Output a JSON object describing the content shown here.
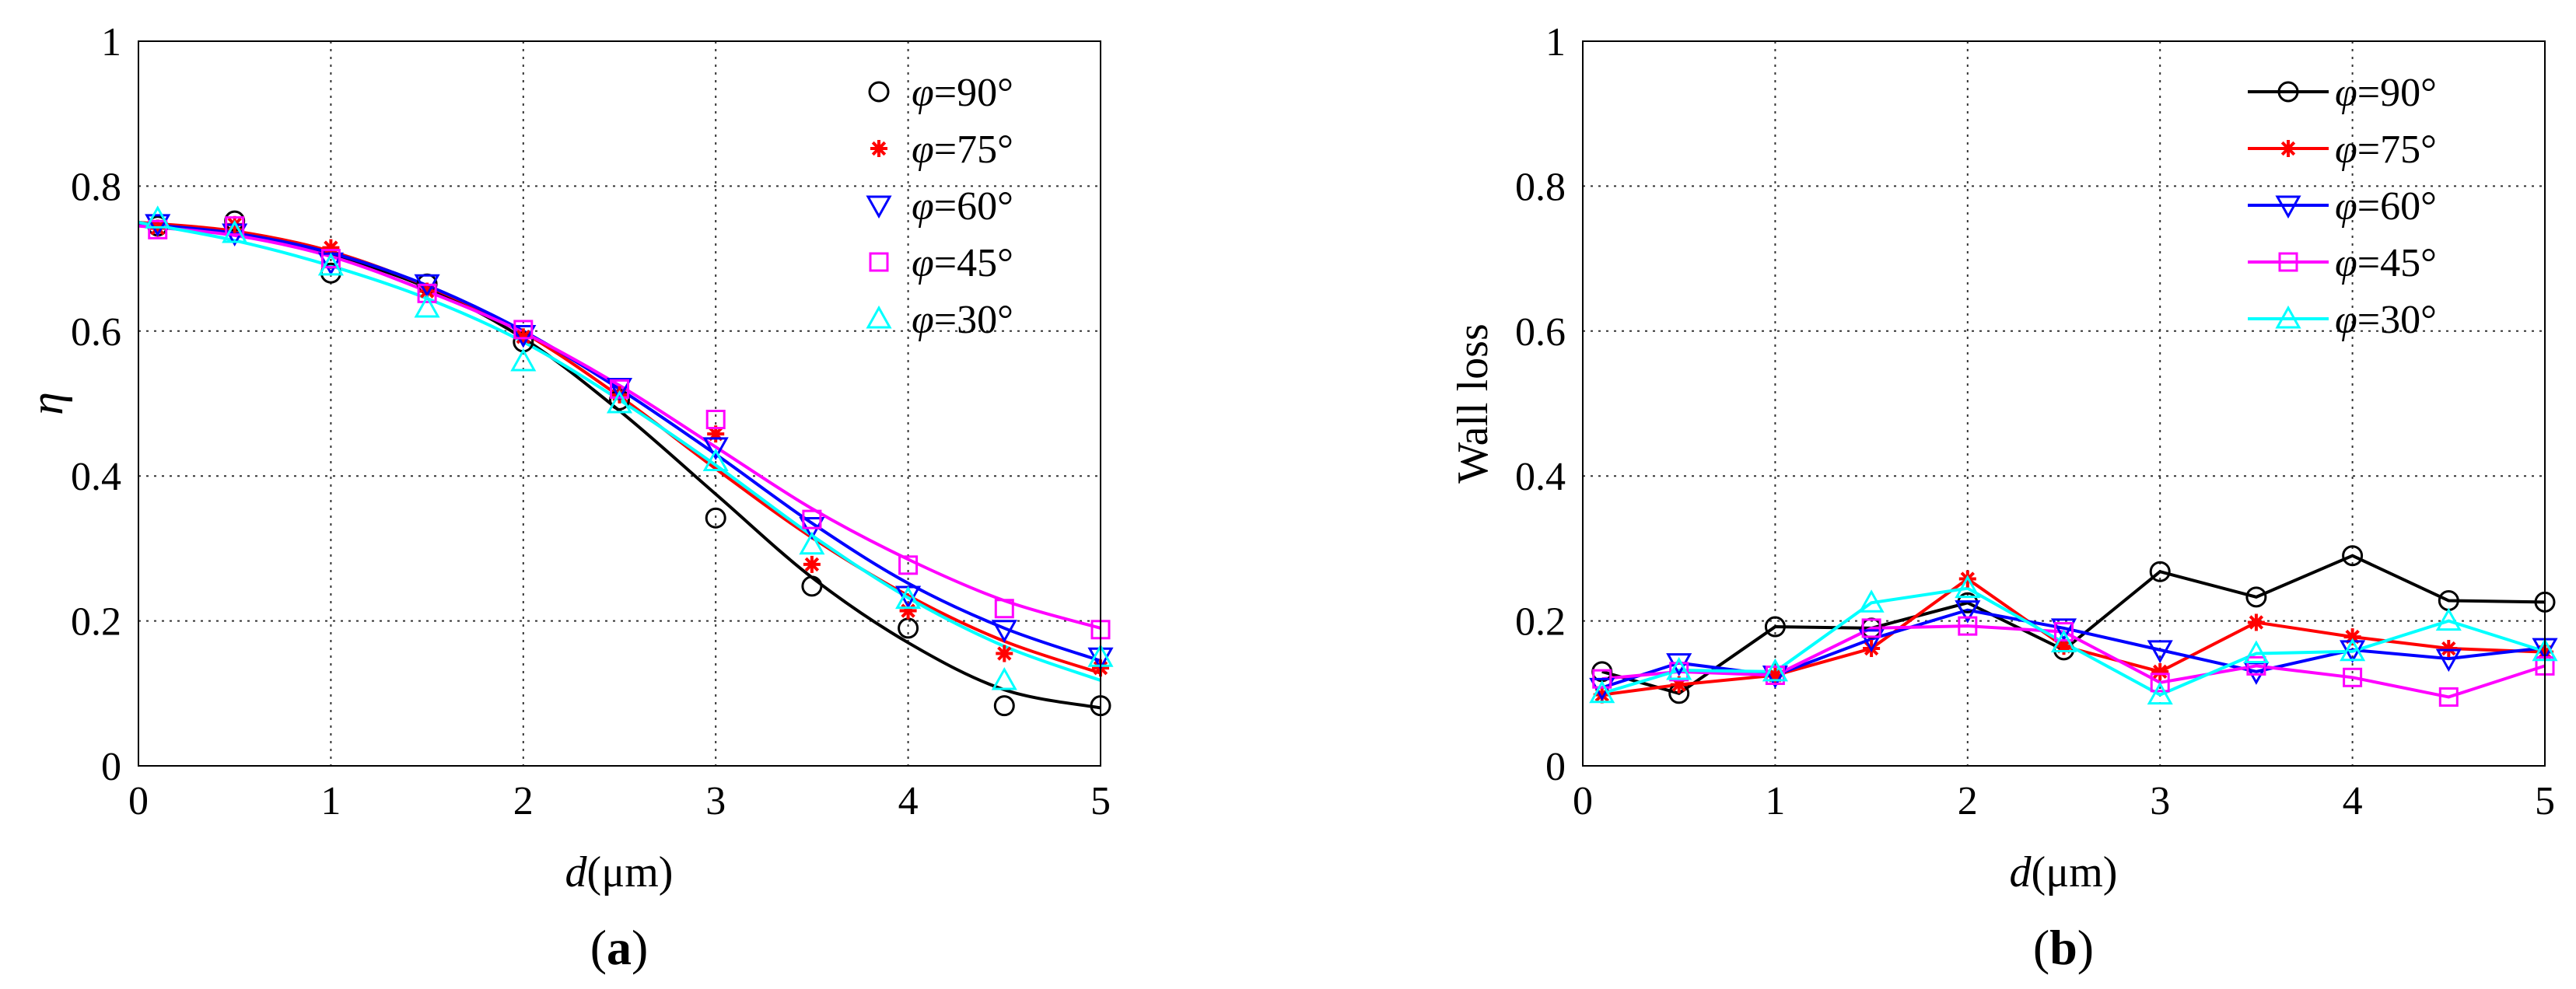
{
  "chart_data": [
    {
      "panel": "a",
      "caption": "(a)",
      "type": "scatter",
      "xlabel_italic": "d",
      "xlabel_unit": "(μm)",
      "ylabel": "η",
      "xlim": [
        0,
        5
      ],
      "ylim": [
        0,
        1
      ],
      "xticks": [
        0,
        1,
        2,
        3,
        4,
        5
      ],
      "yticks": [
        0,
        0.2,
        0.4,
        0.6,
        0.8,
        1
      ],
      "ytick_labels": [
        "0",
        "0.2",
        "0.4",
        "0.6",
        "0.8",
        "1"
      ],
      "grid": true,
      "legend_position": "top-right",
      "series": [
        {
          "label_symbol": "φ",
          "label_value": "=90°",
          "color": "#000000",
          "marker": "circle",
          "x": [
            0.1,
            0.5,
            1.0,
            1.5,
            2.0,
            2.5,
            3.0,
            3.5,
            4.0,
            4.5,
            5.0
          ],
          "y": [
            0.745,
            0.752,
            0.68,
            0.665,
            0.585,
            0.505,
            0.342,
            0.248,
            0.19,
            0.083,
            0.083
          ],
          "fit_x": [
            0,
            0.5,
            1,
            1.5,
            2,
            2.5,
            3,
            3.5,
            4,
            4.5,
            5
          ],
          "fit_y": [
            0.75,
            0.735,
            0.705,
            0.66,
            0.59,
            0.49,
            0.375,
            0.26,
            0.17,
            0.105,
            0.08
          ]
        },
        {
          "label_symbol": "φ",
          "label_value": "=75°",
          "color": "#ff0000",
          "marker": "asterisk",
          "x": [
            0.1,
            0.5,
            1.0,
            1.5,
            2.0,
            2.5,
            3.0,
            3.5,
            4.0,
            4.5,
            5.0
          ],
          "y": [
            0.742,
            0.747,
            0.715,
            0.655,
            0.592,
            0.512,
            0.458,
            0.278,
            0.214,
            0.155,
            0.135
          ],
          "fit_x": [
            0,
            0.5,
            1,
            1.5,
            2,
            2.5,
            3,
            3.5,
            4,
            4.5,
            5
          ],
          "fit_y": [
            0.75,
            0.738,
            0.71,
            0.662,
            0.598,
            0.51,
            0.41,
            0.315,
            0.235,
            0.172,
            0.128
          ]
        },
        {
          "label_symbol": "φ",
          "label_value": "=60°",
          "color": "#0000ff",
          "marker": "triangle-down",
          "x": [
            0.1,
            0.5,
            1.0,
            1.5,
            2.0,
            2.5,
            3.0,
            3.5,
            4.0,
            4.5,
            5.0
          ],
          "y": [
            0.748,
            0.735,
            0.695,
            0.665,
            0.595,
            0.522,
            0.44,
            0.33,
            0.235,
            0.188,
            0.15
          ],
          "fit_x": [
            0,
            0.5,
            1,
            1.5,
            2,
            2.5,
            3,
            3.5,
            4,
            4.5,
            5
          ],
          "fit_y": [
            0.748,
            0.735,
            0.708,
            0.663,
            0.6,
            0.52,
            0.43,
            0.335,
            0.252,
            0.19,
            0.145
          ]
        },
        {
          "label_symbol": "φ",
          "label_value": "=45°",
          "color": "#ff00ff",
          "marker": "square",
          "x": [
            0.1,
            0.5,
            1.0,
            1.5,
            2.0,
            2.5,
            3.0,
            3.5,
            4.0,
            4.5,
            5.0
          ],
          "y": [
            0.74,
            0.745,
            0.7,
            0.652,
            0.602,
            0.52,
            0.478,
            0.34,
            0.277,
            0.217,
            0.188
          ],
          "fit_x": [
            0,
            0.5,
            1,
            1.5,
            2,
            2.5,
            3,
            3.5,
            4,
            4.5,
            5
          ],
          "fit_y": [
            0.745,
            0.732,
            0.703,
            0.655,
            0.598,
            0.525,
            0.44,
            0.355,
            0.285,
            0.228,
            0.19
          ]
        },
        {
          "label_symbol": "φ",
          "label_value": "=30°",
          "color": "#00ffff",
          "marker": "triangle-up",
          "x": [
            0.1,
            0.5,
            1.0,
            1.5,
            2.0,
            2.5,
            3.0,
            3.5,
            4.0,
            4.5,
            5.0
          ],
          "y": [
            0.755,
            0.735,
            0.69,
            0.632,
            0.558,
            0.5,
            0.42,
            0.305,
            0.23,
            0.118,
            0.15
          ],
          "fit_x": [
            0,
            0.5,
            1,
            1.5,
            2,
            2.5,
            3,
            3.5,
            4,
            4.5,
            5
          ],
          "fit_y": [
            0.75,
            0.725,
            0.69,
            0.645,
            0.585,
            0.505,
            0.415,
            0.318,
            0.232,
            0.165,
            0.118
          ]
        }
      ]
    },
    {
      "panel": "b",
      "caption": "(b)",
      "type": "line",
      "xlabel_italic": "d",
      "xlabel_unit": "(μm)",
      "ylabel": "Wall loss",
      "xlim": [
        0,
        5
      ],
      "ylim": [
        0,
        1
      ],
      "xticks": [
        0,
        1,
        2,
        3,
        4,
        5
      ],
      "yticks": [
        0,
        0.2,
        0.4,
        0.6,
        0.8,
        1
      ],
      "ytick_labels": [
        "0",
        "0.2",
        "0.4",
        "0.6",
        "0.8",
        "1"
      ],
      "grid": true,
      "legend_position": "top-right",
      "series": [
        {
          "label_symbol": "φ",
          "label_value": "=90°",
          "color": "#000000",
          "marker": "circle",
          "x": [
            0.1,
            0.5,
            1.0,
            1.5,
            2.0,
            2.5,
            3.0,
            3.5,
            4.0,
            4.5,
            5.0
          ],
          "y": [
            0.13,
            0.1,
            0.192,
            0.19,
            0.225,
            0.16,
            0.268,
            0.233,
            0.29,
            0.228,
            0.226
          ]
        },
        {
          "label_symbol": "φ",
          "label_value": "=75°",
          "color": "#ff0000",
          "marker": "asterisk",
          "x": [
            0.1,
            0.5,
            1.0,
            1.5,
            2.0,
            2.5,
            3.0,
            3.5,
            4.0,
            4.5,
            5.0
          ],
          "y": [
            0.098,
            0.112,
            0.125,
            0.162,
            0.258,
            0.165,
            0.13,
            0.198,
            0.178,
            0.162,
            0.157
          ]
        },
        {
          "label_symbol": "φ",
          "label_value": "=60°",
          "color": "#0000ff",
          "marker": "triangle-down",
          "x": [
            0.1,
            0.5,
            1.0,
            1.5,
            2.0,
            2.5,
            3.0,
            3.5,
            4.0,
            4.5,
            5.0
          ],
          "y": [
            0.108,
            0.142,
            0.125,
            0.175,
            0.215,
            0.19,
            0.16,
            0.13,
            0.16,
            0.148,
            0.163
          ]
        },
        {
          "label_symbol": "φ",
          "label_value": "=45°",
          "color": "#ff00ff",
          "marker": "square",
          "x": [
            0.1,
            0.5,
            1.0,
            1.5,
            2.0,
            2.5,
            3.0,
            3.5,
            4.0,
            4.5,
            5.0
          ],
          "y": [
            0.12,
            0.13,
            0.125,
            0.19,
            0.193,
            0.185,
            0.115,
            0.138,
            0.122,
            0.095,
            0.138
          ]
        },
        {
          "label_symbol": "φ",
          "label_value": "=30°",
          "color": "#00ffff",
          "marker": "triangle-up",
          "x": [
            0.1,
            0.5,
            1.0,
            1.5,
            2.0,
            2.5,
            3.0,
            3.5,
            4.0,
            4.5,
            5.0
          ],
          "y": [
            0.1,
            0.132,
            0.13,
            0.225,
            0.245,
            0.17,
            0.098,
            0.155,
            0.158,
            0.2,
            0.158
          ]
        }
      ]
    }
  ]
}
